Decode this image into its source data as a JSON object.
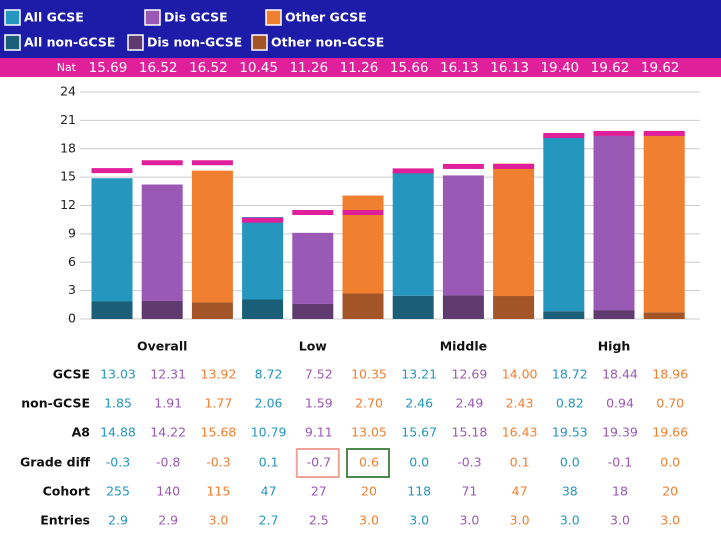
{
  "chart_data": {
    "type": "bar",
    "groups": [
      "Overall",
      "Low",
      "Middle",
      "High"
    ],
    "series": [
      {
        "name": "All GCSE",
        "color": "#2596be",
        "values": [
          13.03,
          8.72,
          13.21,
          18.72
        ],
        "value_labels": [
          "13.03",
          "8.72",
          "13.21",
          "18.72"
        ]
      },
      {
        "name": "Dis GCSE",
        "color": "#9b59b6",
        "values": [
          12.31,
          7.52,
          12.69,
          18.44
        ],
        "value_labels": [
          "12.31",
          "7.52",
          "12.69",
          "18.44"
        ]
      },
      {
        "name": "Other GCSE",
        "color": "#f07f30",
        "values": [
          13.92,
          10.35,
          14.0,
          18.96
        ],
        "value_labels": [
          "13.92",
          "10.35",
          "14.00",
          "18.96"
        ]
      },
      {
        "name": "All non-GCSE",
        "color": "#1a5e78",
        "values": [
          1.85,
          2.06,
          2.46,
          0.82
        ],
        "value_labels": [
          "1.85",
          "2.06",
          "2.46",
          "0.82"
        ]
      },
      {
        "name": "Dis non-GCSE",
        "color": "#5f3a6e",
        "values": [
          1.91,
          1.59,
          2.49,
          0.94
        ],
        "value_labels": [
          "1.91",
          "1.59",
          "2.49",
          "0.94"
        ]
      },
      {
        "name": "Other non-GCSE",
        "color": "#a35528",
        "values": [
          1.77,
          2.7,
          2.43,
          0.7
        ],
        "value_labels": [
          "1.77",
          "2.70",
          "2.43",
          "0.70"
        ]
      }
    ],
    "nat_label": "Nat",
    "nat_color": "#e0209a",
    "nat": [
      15.69,
      16.52,
      16.52,
      10.45,
      11.26,
      11.26,
      15.66,
      16.13,
      16.13,
      19.4,
      19.62,
      19.62
    ],
    "nat_labels": [
      "15.69",
      "16.52",
      "16.52",
      "10.45",
      "11.26",
      "11.26",
      "15.66",
      "16.13",
      "16.13",
      "19.40",
      "19.62",
      "19.62"
    ],
    "ylim": [
      0,
      24
    ],
    "yticks": [
      0,
      3,
      6,
      9,
      12,
      15,
      18,
      21,
      24
    ],
    "grid": true,
    "row_labels": {
      "gcse": "GCSE",
      "non_gcse": "non-GCSE"
    },
    "table": [
      {
        "label": "A8",
        "cells": [
          "14.88",
          "14.22",
          "15.68",
          "10.79",
          "9.11",
          "13.05",
          "15.67",
          "15.18",
          "16.43",
          "19.53",
          "19.39",
          "19.66"
        ]
      },
      {
        "label": "Grade diff",
        "cells": [
          "-0.3",
          "-0.8",
          "-0.3",
          "0.1",
          "-0.7",
          "0.6",
          "0.0",
          "-0.3",
          "0.1",
          "0.0",
          "-0.1",
          "0.0"
        ]
      },
      {
        "label": "Cohort",
        "cells": [
          "255",
          "140",
          "115",
          "47",
          "27",
          "20",
          "118",
          "71",
          "47",
          "38",
          "18",
          "20"
        ]
      },
      {
        "label": "Entries",
        "cells": [
          "2.9",
          "2.9",
          "3.0",
          "2.7",
          "2.5",
          "3.0",
          "3.0",
          "3.0",
          "3.0",
          "3.0",
          "3.0",
          "3.0"
        ]
      }
    ]
  }
}
